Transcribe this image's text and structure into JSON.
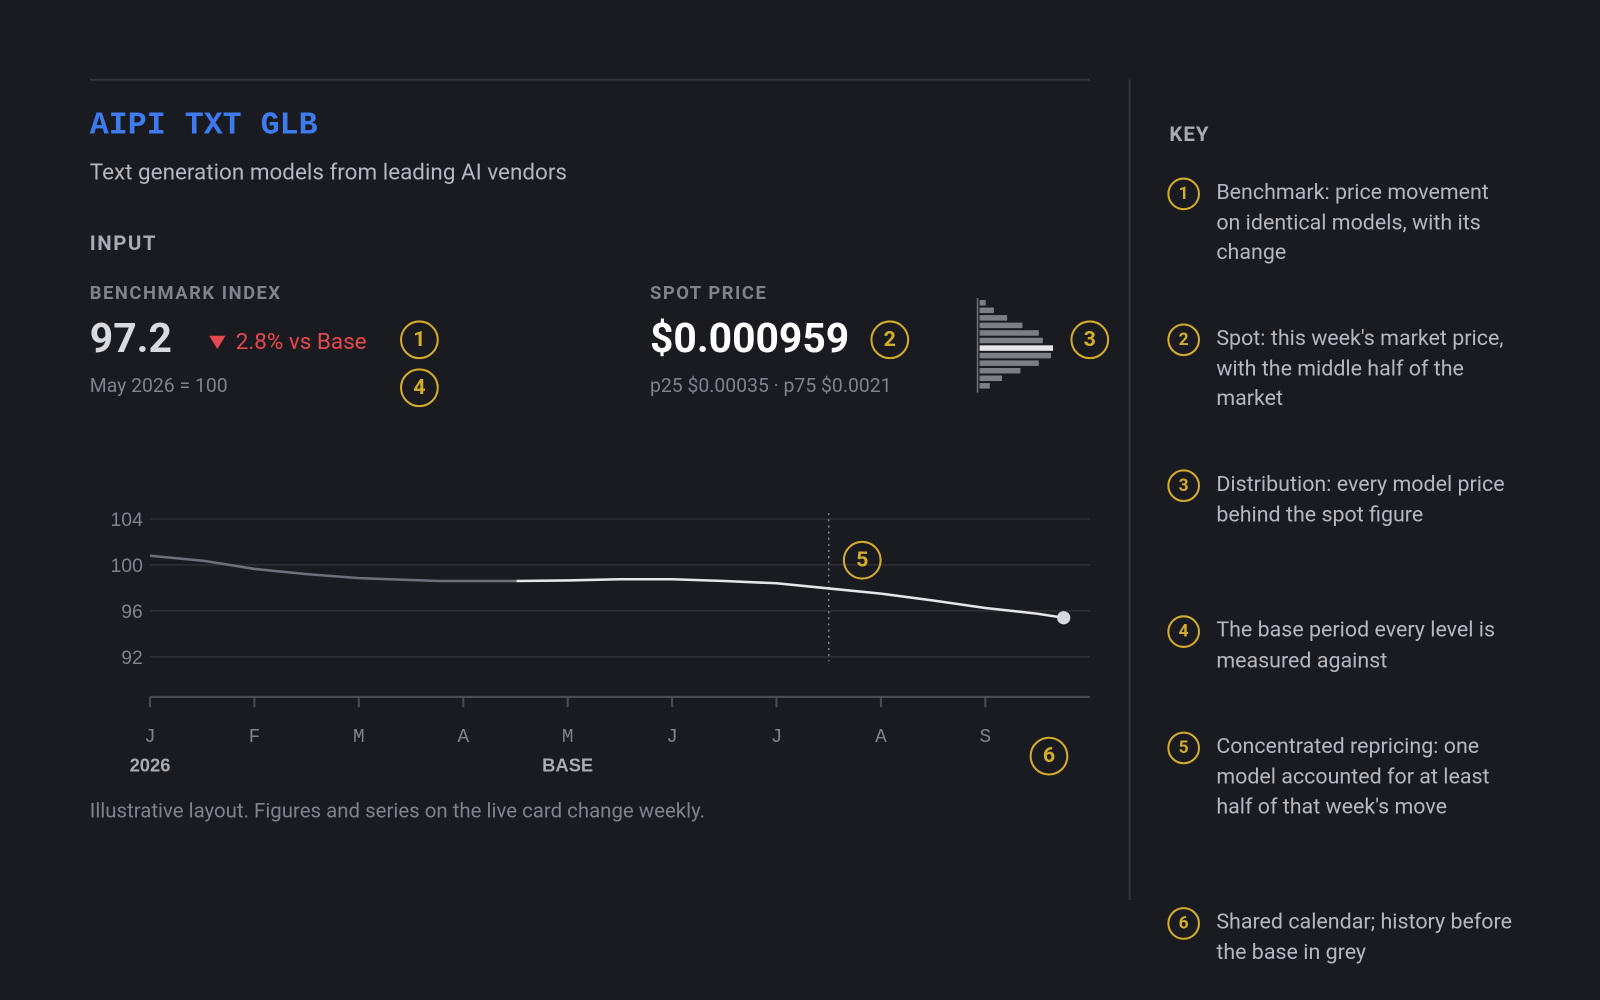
{
  "header": {
    "title": "AIPI TXT GLB",
    "subtitle": "Text generation models from leading AI vendors",
    "section": "INPUT"
  },
  "benchmark": {
    "label": "BENCHMARK INDEX",
    "value": "97.2",
    "change": "2.8% vs Base",
    "base_note": "May 2026 = 100"
  },
  "spot": {
    "label": "SPOT PRICE",
    "value": "$0.000959",
    "range": "p25 $0.00035 · p75 $0.0021"
  },
  "footnote": "Illustrative layout. Figures and series on the live card change weekly.",
  "key": {
    "title": "KEY",
    "items": [
      {
        "number": "1",
        "text": "Benchmark: price movement on identical models, with its change"
      },
      {
        "number": "2",
        "text": "Spot: this week's market price, with the middle half of the market"
      },
      {
        "number": "3",
        "text": "Distribution: every model price behind the spot figure"
      },
      {
        "number": "4",
        "text": "The base period every level is measured against"
      },
      {
        "number": "5",
        "text": "Concentrated repricing: one model accounted for at least half of that week's move"
      },
      {
        "number": "6",
        "text": "Shared calendar; history before the base in grey"
      }
    ]
  },
  "chart_data": [
    {
      "type": "line",
      "xlim": [
        0,
        9
      ],
      "ylim": [
        88.5,
        104.5
      ],
      "yticks": [
        92,
        96,
        100,
        104
      ],
      "xticks": [
        {
          "value": 0,
          "label": "J"
        },
        {
          "value": 1,
          "label": "F"
        },
        {
          "value": 2,
          "label": "M"
        },
        {
          "value": 3,
          "label": "A"
        },
        {
          "value": 4,
          "label": "M"
        },
        {
          "value": 5,
          "label": "J"
        },
        {
          "value": 6,
          "label": "J"
        },
        {
          "value": 7,
          "label": "A"
        },
        {
          "value": 8,
          "label": "S"
        }
      ],
      "period_labels": [
        {
          "value": 0,
          "label": "2026"
        },
        {
          "value": 4,
          "label": "BASE"
        }
      ],
      "event_x": 6.5,
      "grid": true,
      "series": [
        {
          "color": "#6e7079",
          "x": [
            0,
            0.52,
            1,
            1.5,
            2,
            2.77,
            3.51
          ],
          "values": [
            100.8,
            100.35,
            99.65,
            99.2,
            98.85,
            98.6,
            98.6
          ]
        },
        {
          "color": "#e6e6ea",
          "x": [
            3.51,
            4,
            4.5,
            5,
            5.5,
            6,
            6.5,
            7,
            7.5,
            8,
            8.5,
            8.75
          ],
          "values": [
            98.6,
            98.65,
            98.75,
            98.75,
            98.6,
            98.4,
            97.95,
            97.5,
            96.9,
            96.25,
            95.75,
            95.4
          ]
        }
      ]
    },
    {
      "type": "hbar",
      "xlim": [
        0,
        80
      ],
      "color": "#7d7f87",
      "highlight_color": "#e6e6ea",
      "highlight_index": 6,
      "values": [
        6,
        14,
        27,
        42,
        58,
        62,
        72,
        70,
        58,
        40,
        22,
        10
      ]
    }
  ]
}
